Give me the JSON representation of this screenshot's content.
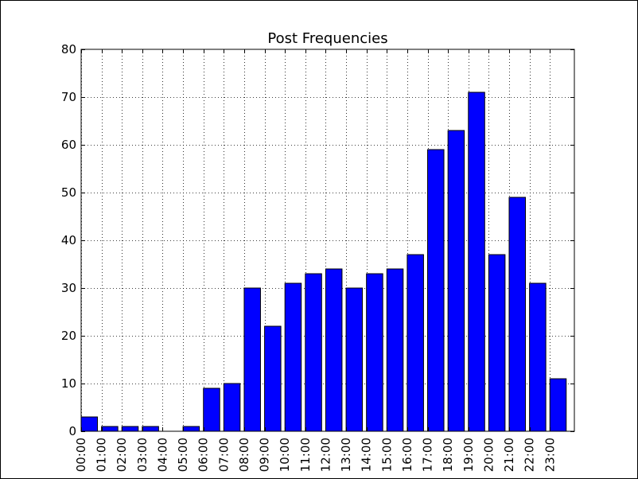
{
  "chart_data": {
    "type": "bar",
    "title": "Post Frequencies",
    "xlabel": "",
    "ylabel": "",
    "categories": [
      "00:00",
      "01:00",
      "02:00",
      "03:00",
      "04:00",
      "05:00",
      "06:00",
      "07:00",
      "08:00",
      "09:00",
      "10:00",
      "11:00",
      "12:00",
      "13:00",
      "14:00",
      "15:00",
      "16:00",
      "17:00",
      "18:00",
      "19:00",
      "20:00",
      "21:00",
      "22:00",
      "23:00"
    ],
    "values": [
      3,
      1,
      1,
      1,
      0,
      1,
      9,
      10,
      30,
      22,
      31,
      33,
      34,
      30,
      33,
      34,
      37,
      59,
      63,
      71,
      37,
      49,
      31,
      11
    ],
    "ylim": [
      0,
      80
    ],
    "yticks": [
      0,
      10,
      20,
      30,
      40,
      50,
      60,
      70,
      80
    ],
    "grid": true,
    "bar_color": "#0000ff",
    "edge_color": "#000000"
  }
}
